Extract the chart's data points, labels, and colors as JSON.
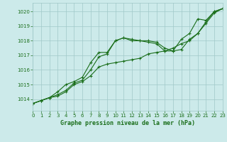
{
  "x": [
    0,
    1,
    2,
    3,
    4,
    5,
    6,
    7,
    8,
    9,
    10,
    11,
    12,
    13,
    14,
    15,
    16,
    17,
    18,
    19,
    20,
    21,
    22,
    23
  ],
  "line1": [
    1013.7,
    1013.9,
    1014.1,
    1014.3,
    1014.6,
    1015.1,
    1015.3,
    1016.0,
    1016.9,
    1017.1,
    1018.0,
    1018.2,
    1018.1,
    1018.0,
    1017.9,
    1017.8,
    1017.3,
    1017.3,
    1018.1,
    1018.5,
    1019.5,
    1019.4,
    1020.0,
    1020.2
  ],
  "line2": [
    1013.7,
    1013.9,
    1014.1,
    1014.5,
    1015.0,
    1015.2,
    1015.5,
    1016.5,
    1017.2,
    1017.2,
    1018.0,
    1018.2,
    1018.0,
    1018.0,
    1018.0,
    1017.9,
    1017.5,
    1017.3,
    1017.4,
    1018.1,
    1018.5,
    1019.3,
    1020.0,
    1020.2
  ],
  "line3": [
    1013.7,
    1013.9,
    1014.1,
    1014.2,
    1014.5,
    1015.0,
    1015.2,
    1015.6,
    1016.2,
    1016.4,
    1016.5,
    1016.6,
    1016.7,
    1016.8,
    1017.1,
    1017.2,
    1017.3,
    1017.5,
    1017.8,
    1018.0,
    1018.5,
    1019.2,
    1019.9,
    1020.2
  ],
  "line_color": "#1a6e1a",
  "bg_color": "#cceaea",
  "grid_color": "#a0c8c8",
  "title": "Graphe pression niveau de la mer (hPa)",
  "ylim": [
    1013.2,
    1020.6
  ],
  "yticks": [
    1014,
    1015,
    1016,
    1017,
    1018,
    1019,
    1020
  ],
  "xlim": [
    0,
    23
  ],
  "xticks": [
    0,
    1,
    2,
    3,
    4,
    5,
    6,
    7,
    8,
    9,
    10,
    11,
    12,
    13,
    14,
    15,
    16,
    17,
    18,
    19,
    20,
    21,
    22,
    23
  ],
  "tick_fontsize": 5.0,
  "label_fontsize": 6.0
}
